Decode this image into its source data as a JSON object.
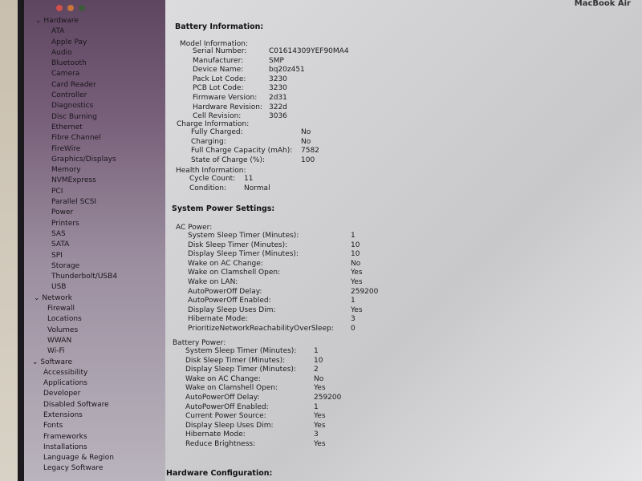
{
  "window": {
    "title": "MacBook Air",
    "traffic_lights": {
      "close": "#d0504a",
      "minimize": "#c8753a",
      "zoom": "#3d5a3a"
    }
  },
  "sidebar": {
    "sections": [
      {
        "label": "Hardware",
        "items": [
          "ATA",
          "Apple Pay",
          "Audio",
          "Bluetooth",
          "Camera",
          "Card Reader",
          "Controller",
          "Diagnostics",
          "Disc Burning",
          "Ethernet",
          "Fibre Channel",
          "FireWire",
          "Graphics/Displays",
          "Memory",
          "NVMExpress",
          "PCI",
          "Parallel SCSI",
          "Power",
          "Printers",
          "SAS",
          "SATA",
          "SPI",
          "Storage",
          "Thunderbolt/USB4",
          "USB"
        ]
      },
      {
        "label": "Network",
        "items": [
          "Firewall",
          "Locations",
          "Volumes",
          "WWAN",
          "Wi-Fi"
        ]
      },
      {
        "label": "Software",
        "items": [
          "Accessibility",
          "Applications",
          "Developer",
          "Disabled Software",
          "Extensions",
          "Fonts",
          "Frameworks",
          "Installations",
          "Language & Region",
          "Legacy Software"
        ]
      }
    ]
  },
  "battery": {
    "title": "Battery Information:",
    "model": {
      "label": "Model Information:",
      "rows": [
        [
          "Serial Number:",
          "C01614309YEF90MA4"
        ],
        [
          "Manufacturer:",
          "SMP"
        ],
        [
          "Device Name:",
          "bq20z451"
        ],
        [
          "Pack Lot Code:",
          "3230"
        ],
        [
          "PCB Lot Code:",
          "3230"
        ],
        [
          "Firmware Version:",
          "2d31"
        ],
        [
          "Hardware Revision:",
          "322d"
        ],
        [
          "Cell Revision:",
          "3036"
        ]
      ]
    },
    "charge": {
      "label": "Charge Information:",
      "rows": [
        [
          "Fully Charged:",
          "No"
        ],
        [
          "Charging:",
          "No"
        ],
        [
          "Full Charge Capacity (mAh):",
          "7582"
        ],
        [
          "State of Charge (%):",
          "100"
        ]
      ]
    },
    "health": {
      "label": "Health Information:",
      "rows": [
        [
          "Cycle Count:",
          "11"
        ],
        [
          "Condition:",
          "Normal"
        ]
      ]
    }
  },
  "power": {
    "title": "System Power Settings:",
    "ac": {
      "label": "AC Power:",
      "rows": [
        [
          "System Sleep Timer (Minutes):",
          "1"
        ],
        [
          "Disk Sleep Timer (Minutes):",
          "10"
        ],
        [
          "Display Sleep Timer (Minutes):",
          "10"
        ],
        [
          "Wake on AC Change:",
          "No"
        ],
        [
          "Wake on Clamshell Open:",
          "Yes"
        ],
        [
          "Wake on LAN:",
          "Yes"
        ],
        [
          "AutoPowerOff Delay:",
          "259200"
        ],
        [
          "AutoPowerOff Enabled:",
          "1"
        ],
        [
          "Display Sleep Uses Dim:",
          "Yes"
        ],
        [
          "Hibernate Mode:",
          "3"
        ],
        [
          "PrioritizeNetworkReachabilityOverSleep:",
          "0"
        ]
      ]
    },
    "battery": {
      "label": "Battery Power:",
      "rows": [
        [
          "System Sleep Timer (Minutes):",
          "1"
        ],
        [
          "Disk Sleep Timer (Minutes):",
          "10"
        ],
        [
          "Display Sleep Timer (Minutes):",
          "2"
        ],
        [
          "Wake on AC Change:",
          "No"
        ],
        [
          "Wake on Clamshell Open:",
          "Yes"
        ],
        [
          "AutoPowerOff Delay:",
          "259200"
        ],
        [
          "AutoPowerOff Enabled:",
          "1"
        ],
        [
          "Current Power Source:",
          "Yes"
        ],
        [
          "Display Sleep Uses Dim:",
          "Yes"
        ],
        [
          "Hibernate Mode:",
          "3"
        ],
        [
          "Reduce Brightness:",
          "Yes"
        ]
      ]
    }
  },
  "hardware_config": {
    "title": "Hardware Configuration:"
  }
}
